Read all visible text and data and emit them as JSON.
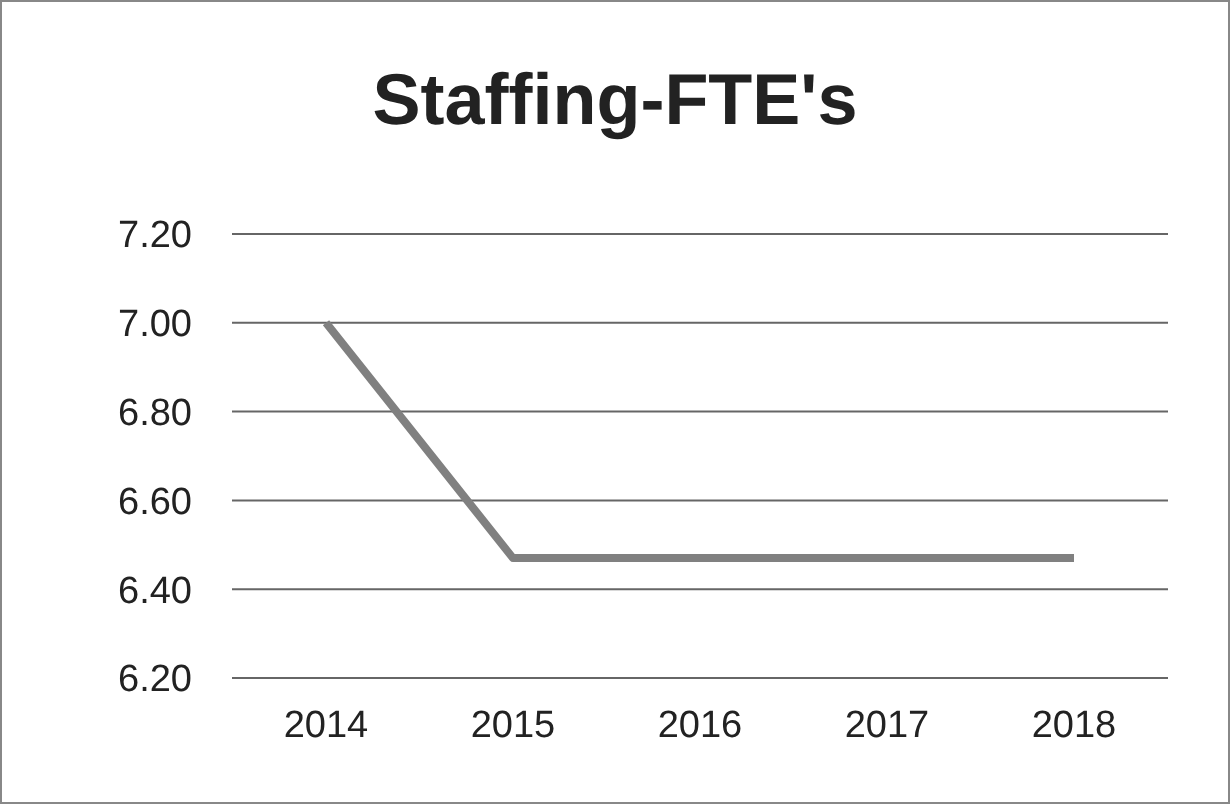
{
  "chart_data": {
    "type": "line",
    "title": "Staffing-FTE's",
    "categories": [
      "2014",
      "2015",
      "2016",
      "2017",
      "2018"
    ],
    "series": [
      {
        "color": "#808080",
        "values": [
          7.0,
          6.47,
          6.47,
          6.47,
          6.47
        ]
      }
    ],
    "ylim": [
      6.2,
      7.2
    ],
    "yticks": [
      {
        "value": 6.2,
        "label": "6.20"
      },
      {
        "value": 6.4,
        "label": "6.40"
      },
      {
        "value": 6.6,
        "label": "6.60"
      },
      {
        "value": 6.8,
        "label": "6.80"
      },
      {
        "value": 7.0,
        "label": "7.00"
      },
      {
        "value": 7.2,
        "label": "7.20"
      }
    ],
    "grid": "y",
    "marker": "none",
    "line_style": "solid"
  }
}
